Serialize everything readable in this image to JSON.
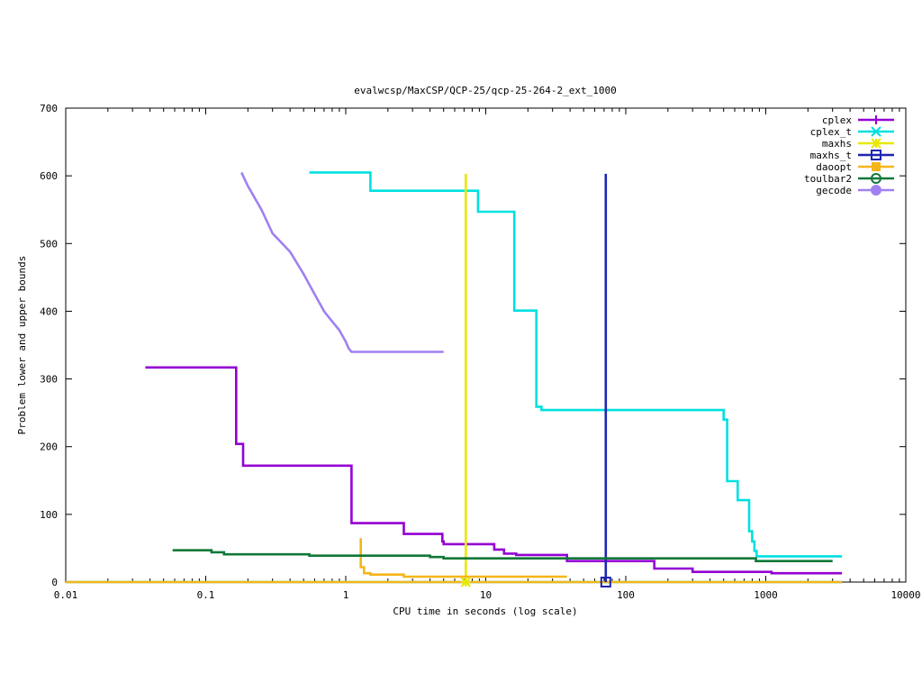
{
  "chart_data": {
    "type": "line",
    "title": "evalwcsp/MaxCSP/QCP-25/qcp-25-264-2_ext_1000",
    "xlabel": "CPU time in seconds (log scale)",
    "ylabel": "Problem lower and upper bounds",
    "xscale": "log",
    "xlim": [
      0.01,
      10000
    ],
    "ylim": [
      0,
      700
    ],
    "xticks": [
      0.01,
      0.1,
      1,
      10,
      100,
      1000,
      10000
    ],
    "xtick_labels": [
      "0.01",
      "0.1",
      "1",
      "10",
      "100",
      "1000",
      "10000"
    ],
    "yticks": [
      0,
      100,
      200,
      300,
      400,
      500,
      600,
      700
    ],
    "ytick_labels": [
      "0",
      "100",
      "200",
      "300",
      "400",
      "500",
      "600",
      "700"
    ],
    "grid": false,
    "legend_position": "top-right",
    "series": [
      {
        "name": "cplex",
        "color": "#9400d3",
        "marker": "plus",
        "x": [
          0.037,
          0.165,
          0.165,
          0.185,
          0.185,
          1.1,
          1.1,
          2.6,
          2.6,
          4.9,
          4.9,
          5.0,
          5.0,
          11.5,
          11.5,
          13.5,
          13.5,
          16.5,
          16.5,
          38,
          38,
          160,
          160,
          300,
          300,
          1100,
          1100,
          3500
        ],
        "y": [
          317,
          317,
          204,
          204,
          172,
          172,
          87,
          87,
          71,
          71,
          60,
          60,
          56,
          56,
          48,
          48,
          42,
          42,
          40,
          40,
          31,
          31,
          20,
          20,
          15,
          15,
          13,
          13
        ]
      },
      {
        "name": "cplex_t",
        "color": "#00e0e0",
        "marker": "x",
        "x": [
          0.55,
          1.5,
          1.5,
          8.8,
          8.8,
          16,
          16,
          23,
          23,
          25,
          25,
          500,
          500,
          530,
          530,
          630,
          630,
          760,
          760,
          800,
          800,
          830,
          830,
          860,
          860,
          3500
        ],
        "y": [
          605,
          605,
          578,
          578,
          547,
          547,
          401,
          401,
          259,
          259,
          254,
          254,
          240,
          240,
          149,
          149,
          121,
          121,
          75,
          75,
          60,
          60,
          46,
          46,
          38,
          38
        ],
        "lower_x": [
          0.01,
          3500
        ],
        "lower_y": [
          0,
          0
        ]
      },
      {
        "name": "maxhs",
        "color": "#e8e800",
        "marker": "star",
        "x": [
          7.2,
          7.2
        ],
        "y": [
          603,
          0
        ]
      },
      {
        "name": "maxhs_t",
        "color": "#1f24b0",
        "marker": "square",
        "x": [
          72,
          72
        ],
        "y": [
          603,
          0
        ]
      },
      {
        "name": "daoopt",
        "color": "#f5b51a",
        "marker": "filled-square",
        "x": [
          1.28,
          1.28,
          1.35,
          1.35,
          1.5,
          1.5,
          2.6,
          2.6,
          38
        ],
        "y": [
          65,
          22,
          22,
          13,
          13,
          11,
          11,
          8,
          8
        ],
        "lower_x": [
          0.01,
          3500
        ],
        "lower_y": [
          0,
          0
        ]
      },
      {
        "name": "toulbar2",
        "color": "#107838",
        "marker": "circle",
        "x": [
          0.058,
          0.11,
          0.11,
          0.135,
          0.135,
          0.55,
          0.55,
          4.0,
          4.0,
          5.0,
          5.0,
          850,
          850,
          3000
        ],
        "y": [
          47,
          47,
          44,
          44,
          41,
          41,
          39,
          39,
          37,
          37,
          35,
          35,
          31,
          31
        ]
      },
      {
        "name": "gecode",
        "color": "#a080f0",
        "marker": "filled-circle",
        "x": [
          0.18,
          0.2,
          0.25,
          0.3,
          0.4,
          0.5,
          0.6,
          0.7,
          0.8,
          0.9,
          1.0,
          1.05,
          1.1,
          5.0
        ],
        "y": [
          605,
          585,
          550,
          515,
          488,
          455,
          425,
          400,
          385,
          372,
          355,
          345,
          340,
          340
        ]
      }
    ]
  }
}
